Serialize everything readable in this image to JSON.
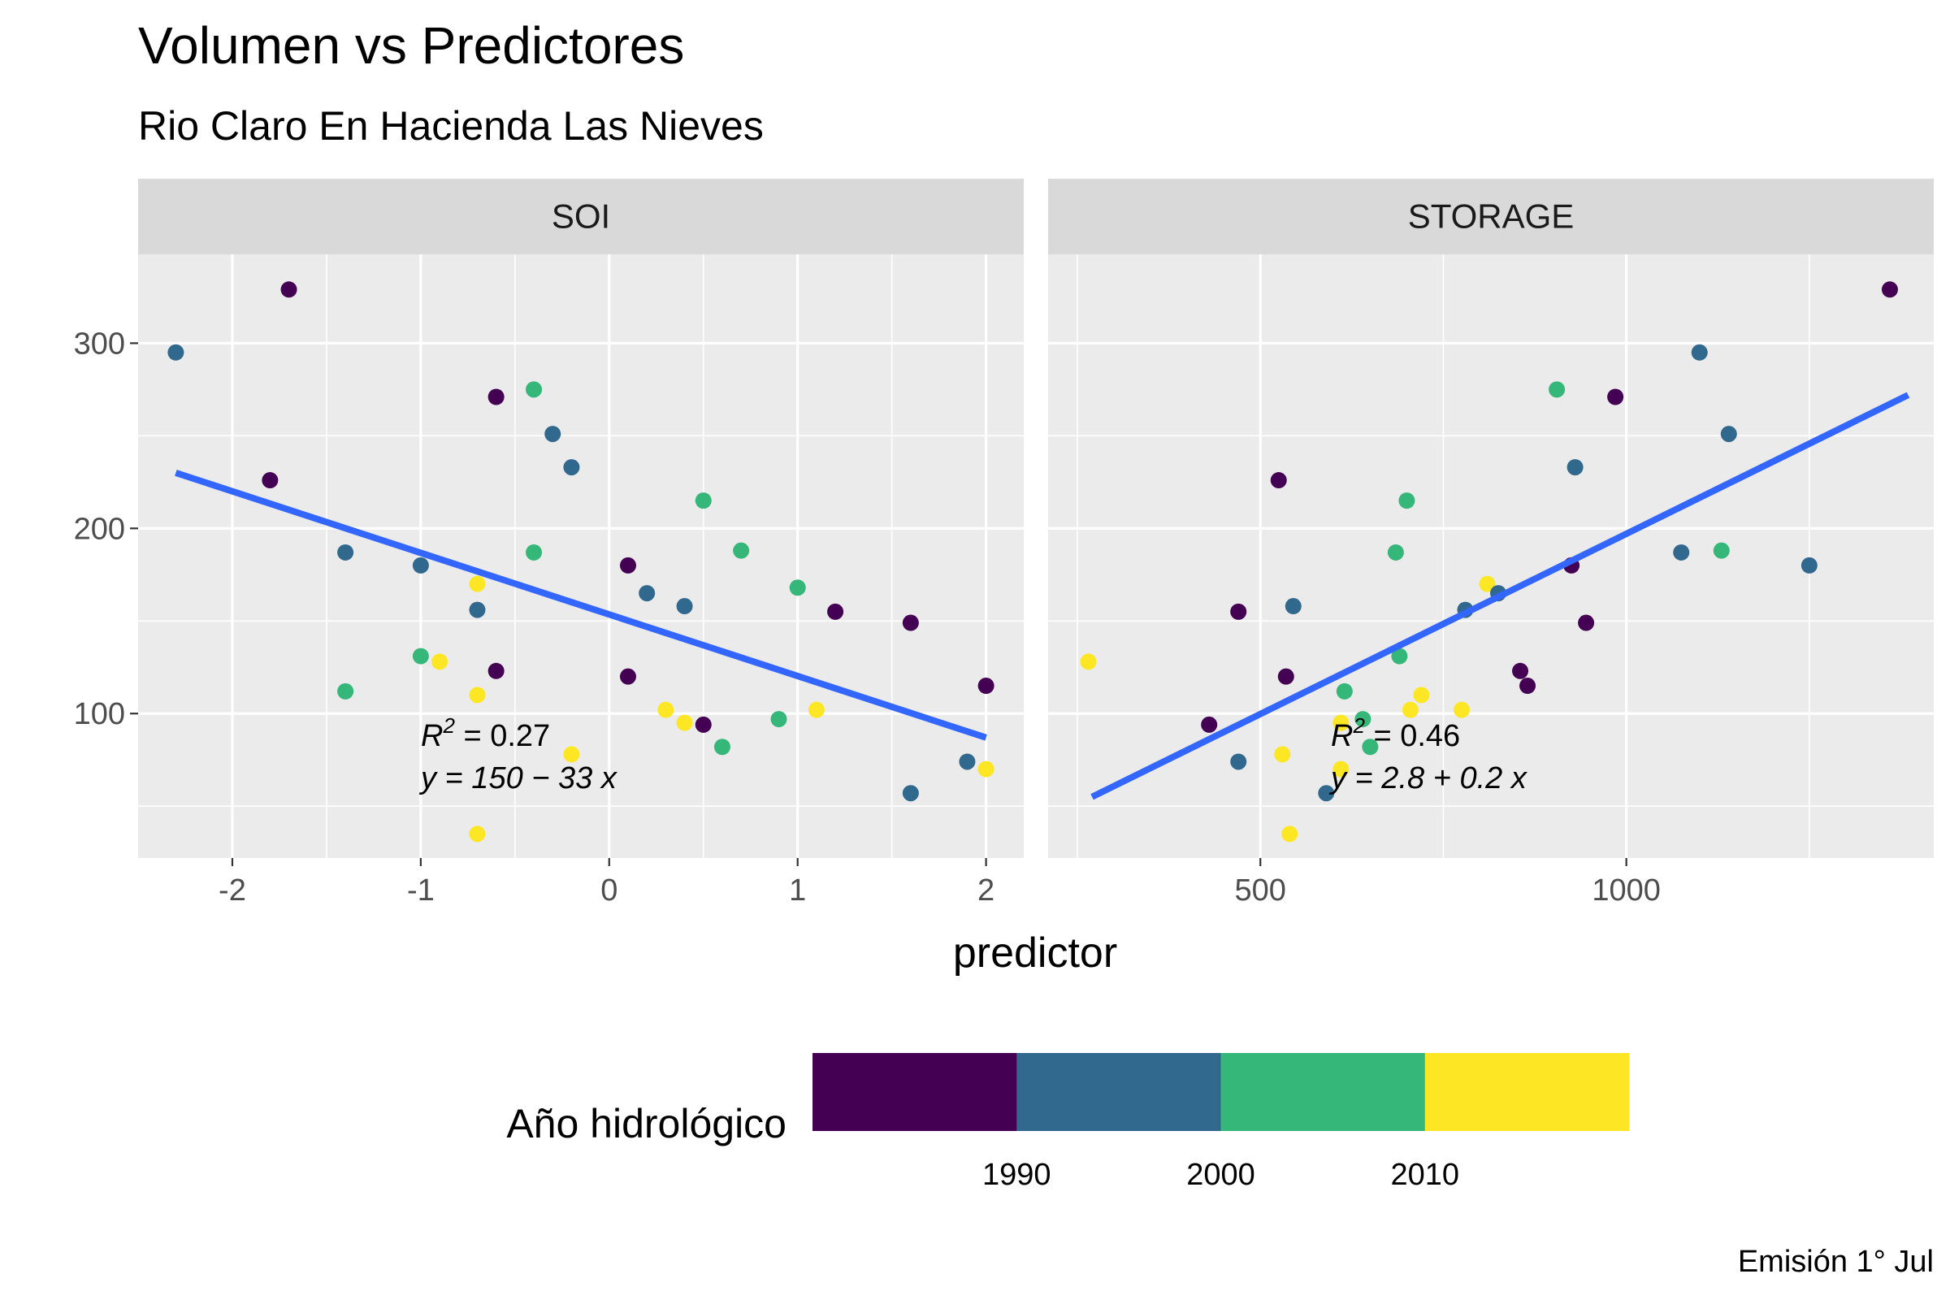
{
  "chart_data": {
    "type": "scatter",
    "title": "Volumen vs Predictores",
    "subtitle": "Rio Claro En Hacienda Las Nieves",
    "xlabel": "predictor",
    "ylabel": "",
    "caption": "Emisión 1° Jul",
    "y_ticks": [
      "100",
      "200",
      "300"
    ],
    "y_range": [
      22,
      348
    ],
    "legend": {
      "title": "Año hidrológico",
      "labels": [
        "1990",
        "2000",
        "2010"
      ],
      "colors": [
        "#440154",
        "#31688E",
        "#35B779",
        "#FDE725"
      ]
    },
    "colors": {
      "line": "#3366FF",
      "c1": "#440154",
      "c2": "#31688E",
      "c3": "#35B779",
      "c4": "#FDE725"
    },
    "panels": [
      {
        "strip": "SOI",
        "x_range": [
          -2.5,
          2.2
        ],
        "x_ticks": [
          "-2",
          "-1",
          "0",
          "1",
          "2"
        ],
        "x_tick_values": [
          -2,
          -1,
          0,
          1,
          2
        ],
        "fit": {
          "x": [
            -2.3,
            2.0
          ],
          "y": [
            230,
            87
          ]
        },
        "annotation": {
          "r2": "= 0.27",
          "eq": "y = 150 − 33 x"
        },
        "points": [
          {
            "x": -2.3,
            "y": 295,
            "c": "c2"
          },
          {
            "x": -1.7,
            "y": 329,
            "c": "c1"
          },
          {
            "x": -1.8,
            "y": 226,
            "c": "c1"
          },
          {
            "x": -1.4,
            "y": 187,
            "c": "c2"
          },
          {
            "x": -1.4,
            "y": 112,
            "c": "c3"
          },
          {
            "x": -1.0,
            "y": 180,
            "c": "c2"
          },
          {
            "x": -1.0,
            "y": 131,
            "c": "c3"
          },
          {
            "x": -0.9,
            "y": 128,
            "c": "c4"
          },
          {
            "x": -0.7,
            "y": 170,
            "c": "c4"
          },
          {
            "x": -0.7,
            "y": 156,
            "c": "c2"
          },
          {
            "x": -0.7,
            "y": 110,
            "c": "c4"
          },
          {
            "x": -0.7,
            "y": 35,
            "c": "c4"
          },
          {
            "x": -0.6,
            "y": 271,
            "c": "c1"
          },
          {
            "x": -0.6,
            "y": 123,
            "c": "c1"
          },
          {
            "x": -0.4,
            "y": 275,
            "c": "c3"
          },
          {
            "x": -0.4,
            "y": 187,
            "c": "c3"
          },
          {
            "x": -0.3,
            "y": 251,
            "c": "c2"
          },
          {
            "x": -0.2,
            "y": 233,
            "c": "c2"
          },
          {
            "x": -0.2,
            "y": 78,
            "c": "c4"
          },
          {
            "x": 0.1,
            "y": 180,
            "c": "c1"
          },
          {
            "x": 0.1,
            "y": 120,
            "c": "c1"
          },
          {
            "x": 0.2,
            "y": 165,
            "c": "c2"
          },
          {
            "x": 0.3,
            "y": 102,
            "c": "c4"
          },
          {
            "x": 0.4,
            "y": 158,
            "c": "c2"
          },
          {
            "x": 0.4,
            "y": 95,
            "c": "c4"
          },
          {
            "x": 0.5,
            "y": 215,
            "c": "c3"
          },
          {
            "x": 0.5,
            "y": 94,
            "c": "c1"
          },
          {
            "x": 0.6,
            "y": 82,
            "c": "c3"
          },
          {
            "x": 0.7,
            "y": 188,
            "c": "c3"
          },
          {
            "x": 0.9,
            "y": 97,
            "c": "c3"
          },
          {
            "x": 1.0,
            "y": 168,
            "c": "c3"
          },
          {
            "x": 1.1,
            "y": 102,
            "c": "c4"
          },
          {
            "x": 1.2,
            "y": 155,
            "c": "c1"
          },
          {
            "x": 1.6,
            "y": 149,
            "c": "c1"
          },
          {
            "x": 1.6,
            "y": 57,
            "c": "c2"
          },
          {
            "x": 1.9,
            "y": 74,
            "c": "c2"
          },
          {
            "x": 2.0,
            "y": 115,
            "c": "c1"
          },
          {
            "x": 2.0,
            "y": 70,
            "c": "c4"
          }
        ]
      },
      {
        "strip": "STORAGE",
        "x_range": [
          210,
          1420
        ],
        "x_ticks": [
          "500",
          "1000"
        ],
        "x_tick_values": [
          500,
          1000
        ],
        "fit": {
          "x": [
            270,
            1385
          ],
          "y": [
            55,
            272
          ]
        },
        "annotation": {
          "r2": "= 0.46",
          "eq": "y = 2.8 + 0.2 x"
        },
        "points": [
          {
            "x": 265,
            "y": 128,
            "c": "c4"
          },
          {
            "x": 430,
            "y": 94,
            "c": "c1"
          },
          {
            "x": 470,
            "y": 155,
            "c": "c1"
          },
          {
            "x": 470,
            "y": 74,
            "c": "c2"
          },
          {
            "x": 525,
            "y": 226,
            "c": "c1"
          },
          {
            "x": 530,
            "y": 78,
            "c": "c4"
          },
          {
            "x": 535,
            "y": 120,
            "c": "c1"
          },
          {
            "x": 540,
            "y": 35,
            "c": "c4"
          },
          {
            "x": 545,
            "y": 158,
            "c": "c2"
          },
          {
            "x": 590,
            "y": 57,
            "c": "c2"
          },
          {
            "x": 610,
            "y": 95,
            "c": "c4"
          },
          {
            "x": 610,
            "y": 70,
            "c": "c4"
          },
          {
            "x": 615,
            "y": 112,
            "c": "c3"
          },
          {
            "x": 640,
            "y": 97,
            "c": "c3"
          },
          {
            "x": 650,
            "y": 82,
            "c": "c3"
          },
          {
            "x": 685,
            "y": 187,
            "c": "c3"
          },
          {
            "x": 690,
            "y": 131,
            "c": "c3"
          },
          {
            "x": 700,
            "y": 215,
            "c": "c3"
          },
          {
            "x": 705,
            "y": 102,
            "c": "c4"
          },
          {
            "x": 720,
            "y": 110,
            "c": "c4"
          },
          {
            "x": 775,
            "y": 102,
            "c": "c4"
          },
          {
            "x": 780,
            "y": 156,
            "c": "c2"
          },
          {
            "x": 810,
            "y": 170,
            "c": "c4"
          },
          {
            "x": 825,
            "y": 165,
            "c": "c2"
          },
          {
            "x": 855,
            "y": 123,
            "c": "c1"
          },
          {
            "x": 865,
            "y": 115,
            "c": "c1"
          },
          {
            "x": 905,
            "y": 275,
            "c": "c3"
          },
          {
            "x": 925,
            "y": 180,
            "c": "c1"
          },
          {
            "x": 930,
            "y": 233,
            "c": "c2"
          },
          {
            "x": 945,
            "y": 149,
            "c": "c1"
          },
          {
            "x": 985,
            "y": 271,
            "c": "c1"
          },
          {
            "x": 1075,
            "y": 187,
            "c": "c2"
          },
          {
            "x": 1100,
            "y": 295,
            "c": "c2"
          },
          {
            "x": 1130,
            "y": 188,
            "c": "c3"
          },
          {
            "x": 1140,
            "y": 251,
            "c": "c2"
          },
          {
            "x": 1250,
            "y": 180,
            "c": "c2"
          },
          {
            "x": 1360,
            "y": 329,
            "c": "c1"
          }
        ]
      }
    ]
  }
}
